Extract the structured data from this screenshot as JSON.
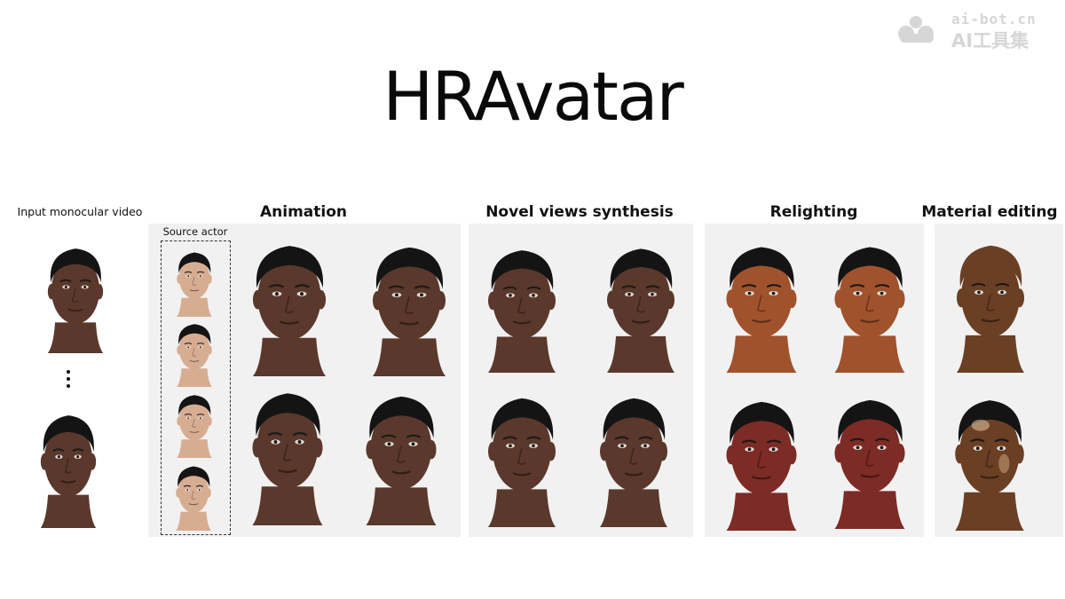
{
  "title": "HRAvatar",
  "watermark": {
    "domain": "ai-bot.cn",
    "name": "AI工具集"
  },
  "labels": {
    "input": "Input monocular video",
    "source_actor": "Source actor",
    "animation": "Animation",
    "novel_views": "Novel views synthesis",
    "relighting": "Relighting",
    "material_editing": "Material editing"
  },
  "colors": {
    "background": "#ffffff",
    "panel": "#f1f1f1",
    "hair": "#141414",
    "skin_default": "#5a382b",
    "skin_asian": "#d7ad92",
    "skin_relight_orange": "#a0522d",
    "skin_relight_red": "#7c2b25",
    "skin_material": "#6a3f24",
    "watermark": "#d6d6d6"
  }
}
